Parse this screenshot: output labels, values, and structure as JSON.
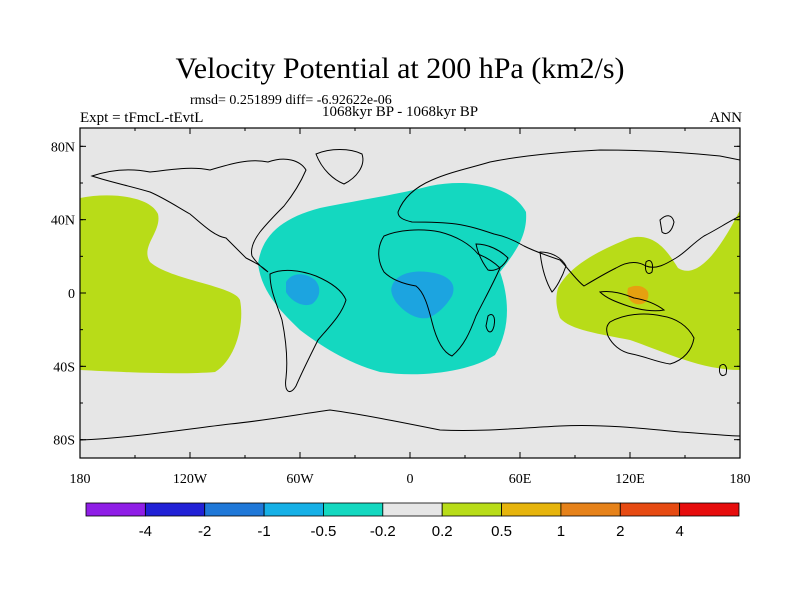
{
  "plot": {
    "title": "Velocity Potential at 200 hPa (km2/s)",
    "stats": "rmsd= 0.251899 diff= -6.92622e-06",
    "experiment": "Expt = tFmcL-tEvtL",
    "period": "1068kyr BP - 1068kyr BP",
    "season": "ANN"
  },
  "axes": {
    "lat_labels": [
      "80N",
      "40N",
      "0",
      "40S",
      "80S"
    ],
    "lon_labels": [
      "180",
      "120W",
      "60W",
      "0",
      "60E",
      "120E",
      "180"
    ]
  },
  "colorbar": {
    "colors": [
      "#8f1ee6",
      "#2121d6",
      "#1f78d8",
      "#16b0e6",
      "#14d8c0",
      "#e6e6e6",
      "#b8dc18",
      "#e6b40c",
      "#e6821a",
      "#e64a12",
      "#e60c0c"
    ],
    "labels": [
      "-4",
      "-2",
      "-1",
      "-0.5",
      "-0.2",
      "0.2",
      "0.5",
      "1",
      "2",
      "4"
    ]
  },
  "colors": {
    "background": "#e6e6e6",
    "negative_light": "#14d8c0",
    "negative_mid": "#1ca4e0",
    "positive_light": "#b8dc18",
    "positive_mid": "#e6a010",
    "coast": "#000000"
  }
}
